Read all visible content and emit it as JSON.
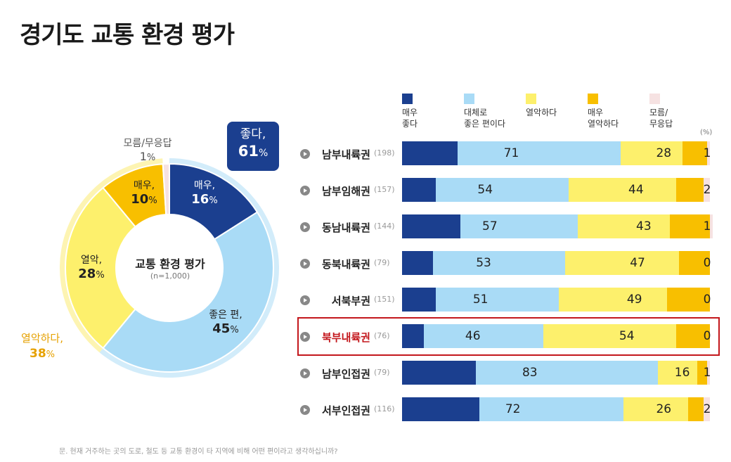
{
  "title": "경기도 교통 환경 평가",
  "colors": {
    "very_good": "#1b3f8f",
    "fairly_good": "#a9dbf6",
    "bad": "#fdf06c",
    "very_bad": "#f8bf00",
    "no_answer": "#f6e2e2",
    "outer_bad": "#fdf4b2",
    "outer_good": "#d2ecfa",
    "highlight": "#c3171c"
  },
  "donut": {
    "center_title": "교통 환경 평가",
    "center_n": "(n=1,000)",
    "segments": [
      {
        "name": "매우,",
        "value": 16,
        "pct": "16",
        "color_key": "very_good"
      },
      {
        "name": "좋은 편,",
        "value": 45,
        "pct": "45",
        "color_key": "fairly_good"
      },
      {
        "name": "열악,",
        "value": 28,
        "pct": "28",
        "color_key": "bad"
      },
      {
        "name": "매우,",
        "value": 10,
        "pct": "10",
        "color_key": "very_bad"
      },
      {
        "name": "모름/무응답",
        "value": 1,
        "pct": "1",
        "color_key": "no_answer"
      }
    ],
    "good_label": "좋다,",
    "good_pct": "61",
    "bad_label": "열악하다,",
    "bad_pct": "38",
    "pct_sign": "%"
  },
  "legend": [
    {
      "label": "매우\n좋다",
      "color_key": "very_good"
    },
    {
      "label": "대체로\n좋은 편이다",
      "color_key": "fairly_good"
    },
    {
      "label": "열악하다",
      "color_key": "bad"
    },
    {
      "label": "매우\n열악하다",
      "color_key": "very_bad"
    },
    {
      "label": "모름/\n무응답",
      "color_key": "no_answer"
    }
  ],
  "unit": "(%)",
  "chart_data": {
    "type": "bar",
    "stacked": true,
    "orientation": "horizontal",
    "categories": [
      "남부내륙권",
      "남부임해권",
      "동남내륙권",
      "동북내륙권",
      "서북부권",
      "북부내륙권",
      "남부인접권",
      "서부인접권"
    ],
    "sample_sizes": [
      "(198)",
      "(157)",
      "(144)",
      "(79)",
      "(151)",
      "(76)",
      "(79)",
      "(116)"
    ],
    "highlighted_category": "북부내륙권",
    "series": [
      {
        "name": "매우 좋다",
        "values": [
          18,
          11,
          19,
          10,
          11,
          7,
          24,
          25
        ]
      },
      {
        "name": "대체로 좋은 편이다",
        "values": [
          53,
          43,
          38,
          43,
          40,
          39,
          59,
          47
        ]
      },
      {
        "name": "열악하다",
        "values": [
          20,
          35,
          30,
          37,
          35,
          43,
          13,
          21
        ]
      },
      {
        "name": "매우 열악하다",
        "values": [
          8,
          9,
          13,
          10,
          14,
          11,
          3,
          5
        ]
      },
      {
        "name": "모름/무응답",
        "values": [
          1,
          2,
          1,
          0,
          0,
          0,
          1,
          2
        ]
      }
    ],
    "good_totals": [
      "71",
      "54",
      "57",
      "53",
      "51",
      "46",
      "83",
      "72"
    ],
    "bad_totals": [
      "28",
      "44",
      "43",
      "47",
      "49",
      "54",
      "16",
      "26"
    ],
    "no_answer_labels": [
      "1",
      "2",
      "1",
      "0",
      "0",
      "0",
      "1",
      "2"
    ],
    "xlim": [
      0,
      100
    ],
    "unit": "(%)"
  },
  "footnote": "문. 현재 거주하는 곳의 도로, 철도 등 교통 환경이 타 지역에 비해 어떤 편이라고 생각하십니까?"
}
